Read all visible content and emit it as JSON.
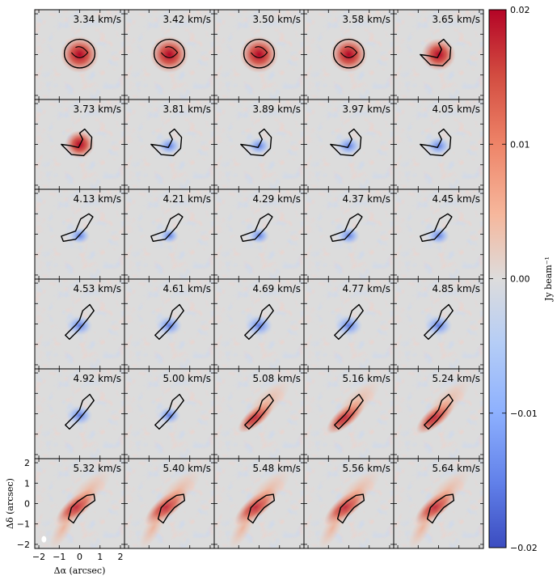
{
  "chart_data": {
    "type": "heatmap",
    "title": "",
    "layout": {
      "rows": 6,
      "cols": 5
    },
    "velocity_unit": "km/s",
    "channels": [
      3.34,
      3.42,
      3.5,
      3.58,
      3.65,
      3.73,
      3.81,
      3.89,
      3.97,
      4.05,
      4.13,
      4.21,
      4.29,
      4.37,
      4.45,
      4.53,
      4.61,
      4.69,
      4.77,
      4.85,
      4.92,
      5.0,
      5.08,
      5.16,
      5.24,
      5.32,
      5.4,
      5.48,
      5.56,
      5.64
    ],
    "channel_labels": [
      "3.34 km/s",
      "3.42 km/s",
      "3.50 km/s",
      "3.58 km/s",
      "3.65 km/s",
      "3.73 km/s",
      "3.81 km/s",
      "3.89 km/s",
      "3.97 km/s",
      "4.05 km/s",
      "4.13 km/s",
      "4.21 km/s",
      "4.29 km/s",
      "4.37 km/s",
      "4.45 km/s",
      "4.53 km/s",
      "4.61 km/s",
      "4.69 km/s",
      "4.77 km/s",
      "4.85 km/s",
      "4.92 km/s",
      "5.00 km/s",
      "5.08 km/s",
      "5.16 km/s",
      "5.24 km/s",
      "5.32 km/s",
      "5.40 km/s",
      "5.48 km/s",
      "5.56 km/s",
      "5.64 km/s"
    ],
    "channel_peak_emission_jy_beam": [
      0.02,
      0.02,
      0.02,
      0.019,
      0.016,
      0.012,
      -0.006,
      -0.006,
      -0.007,
      -0.007,
      -0.005,
      -0.004,
      -0.005,
      -0.006,
      -0.006,
      -0.008,
      -0.008,
      -0.009,
      -0.009,
      -0.009,
      -0.008,
      -0.006,
      0.014,
      0.016,
      0.016,
      0.018,
      0.019,
      0.019,
      0.019,
      0.018
    ],
    "xlabel": "Δα (arcsec)",
    "ylabel": "Δδ (arcsec)",
    "xlim": [
      -2.2,
      2.2
    ],
    "ylim": [
      -2.2,
      2.2
    ],
    "x_ticks": [
      -2,
      -1,
      0,
      1,
      2
    ],
    "y_ticks": [
      -2,
      -1,
      0,
      1,
      2
    ],
    "x_tick_labels": [
      "−2",
      "−1",
      "0",
      "1",
      "2"
    ],
    "y_tick_labels": [
      "−2",
      "−1",
      "0",
      "1",
      "2"
    ],
    "colorbar": {
      "label": "Jy beam⁻¹",
      "range": [
        -0.02,
        0.02
      ],
      "ticks": [
        0.02,
        0.01,
        0.0,
        -0.01,
        -0.02
      ],
      "tick_labels": [
        "0.02",
        "0.01",
        "0.00",
        "−0.01",
        "−0.02"
      ],
      "colormap": "coolwarm"
    },
    "contour_color": "#000000"
  },
  "colors": {
    "high": "#b40426",
    "mid": "#dddcdc",
    "low": "#3b4cc0"
  }
}
